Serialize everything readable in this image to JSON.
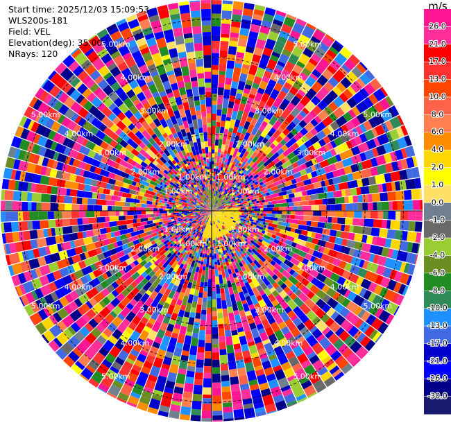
{
  "header": {
    "start_time": "Start time: 2025/12/03 15:09:53",
    "site": "WLS200s-181",
    "field": "Field: VEL",
    "elevation": "Elevation(deg): 35.00",
    "nrays": "NRays: 120"
  },
  "range_labels": [
    "1.00km",
    "2.00km",
    "3.00km",
    "4.00km",
    "5.00km"
  ],
  "colorbar": {
    "unit": "m/s",
    "ticks": [
      "26.0",
      "21.0",
      "17.0",
      "13.0",
      "10.0",
      "8.0",
      "6.0",
      "4.0",
      "2.0",
      "1.0",
      "0.0",
      "-1.0",
      "-2.0",
      "-4.0",
      "-6.0",
      "-8.0",
      "-10.0",
      "-13.0",
      "-17.0",
      "-21.0",
      "-26.0",
      "-30.0"
    ],
    "colors": [
      "#ff1493",
      "#ff2e9a",
      "#ff0000",
      "#ff3030",
      "#ff4500",
      "#ff6347",
      "#ff7f50",
      "#ff8c00",
      "#ffd700",
      "#ffff00",
      "#ffe066",
      "#708090",
      "#696969",
      "#9acd32",
      "#6b8e23",
      "#228b22",
      "#2e8b57",
      "#1e90ff",
      "#4169e1",
      "#0000cd",
      "#0000ff",
      "#00008b",
      "#191970"
    ]
  },
  "chart_data": {
    "type": "ppi",
    "field": "VEL",
    "units": "m/s",
    "elevation_deg": 35.0,
    "n_rays": 120,
    "max_range_km": 5.5,
    "range_rings_km": [
      1,
      2,
      3,
      4,
      5
    ],
    "color_levels": [
      -30.0,
      -26.0,
      -21.0,
      -17.0,
      -13.0,
      -10.0,
      -8.0,
      -6.0,
      -4.0,
      -2.0,
      -1.0,
      0.0,
      1.0,
      2.0,
      4.0,
      6.0,
      8.0,
      10.0,
      13.0,
      17.0,
      21.0,
      26.0
    ],
    "near_field": {
      "range_km": [
        0.0,
        0.7
      ],
      "south_sector_azimuth_deg": [
        85,
        200
      ],
      "south_sector_value": 3.0,
      "north_sector_azimuth_deg": [
        -40,
        60
      ],
      "north_sector_value": -6.0
    }
  }
}
